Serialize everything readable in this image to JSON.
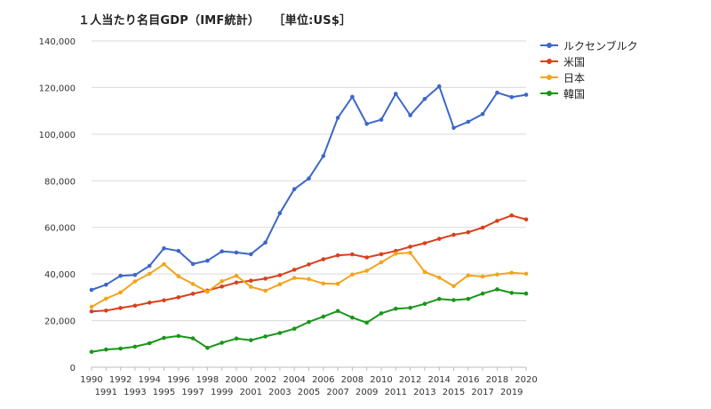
{
  "header": {
    "title": "１人当たり名目GDP（IMF統計）",
    "unit": "［単位:US$］"
  },
  "chart_data": {
    "type": "line",
    "title": "１人当たり名目GDP（IMF統計）",
    "subtitle": "［単位:US$］",
    "xlabel": "",
    "ylabel": "",
    "ylim": [
      0,
      140000
    ],
    "yticks": [
      "0",
      "20,000",
      "40,000",
      "60,000",
      "80,000",
      "100,000",
      "120,000",
      "140,000"
    ],
    "grid": true,
    "legend_position": "right",
    "x": [
      1990,
      1991,
      1992,
      1993,
      1994,
      1995,
      1996,
      1997,
      1998,
      1999,
      2000,
      2001,
      2002,
      2003,
      2004,
      2005,
      2006,
      2007,
      2008,
      2009,
      2010,
      2011,
      2012,
      2013,
      2014,
      2015,
      2016,
      2017,
      2018,
      2019,
      2020
    ],
    "series": [
      {
        "name": "ルクセンブルク",
        "color": "#3c67c8",
        "values": [
          33200,
          35400,
          39200,
          39600,
          43500,
          51000,
          49900,
          44300,
          45700,
          49700,
          49200,
          48500,
          53500,
          66100,
          76400,
          81000,
          90600,
          107000,
          116000,
          104400,
          106200,
          117300,
          108100,
          115100,
          120500,
          102700,
          105300,
          108600,
          117800,
          115900,
          116900
        ]
      },
      {
        "name": "米国",
        "color": "#d9401c",
        "values": [
          23900,
          24300,
          25400,
          26400,
          27700,
          28700,
          30000,
          31500,
          32900,
          34600,
          36300,
          37100,
          38000,
          39500,
          41800,
          44100,
          46300,
          48000,
          48400,
          47100,
          48500,
          49900,
          51700,
          53200,
          55100,
          56800,
          57900,
          59900,
          62800,
          65100,
          63400
        ]
      },
      {
        "name": "日本",
        "color": "#f5a31a",
        "values": [
          25900,
          29400,
          32100,
          36800,
          40100,
          44200,
          39000,
          35700,
          32400,
          36900,
          39200,
          34500,
          32800,
          35600,
          38300,
          37800,
          35900,
          35800,
          39800,
          41400,
          45000,
          48700,
          49100,
          40900,
          38400,
          34800,
          39400,
          38900,
          39800,
          40500,
          40100
        ]
      },
      {
        "name": "韓国",
        "color": "#199619",
        "values": [
          6600,
          7600,
          8000,
          8800,
          10300,
          12600,
          13400,
          12400,
          8300,
          10500,
          12300,
          11600,
          13200,
          14700,
          16500,
          19400,
          21700,
          24100,
          21300,
          19100,
          23100,
          25100,
          25500,
          27200,
          29300,
          28800,
          29300,
          31600,
          33400,
          31900,
          31600
        ]
      }
    ]
  }
}
